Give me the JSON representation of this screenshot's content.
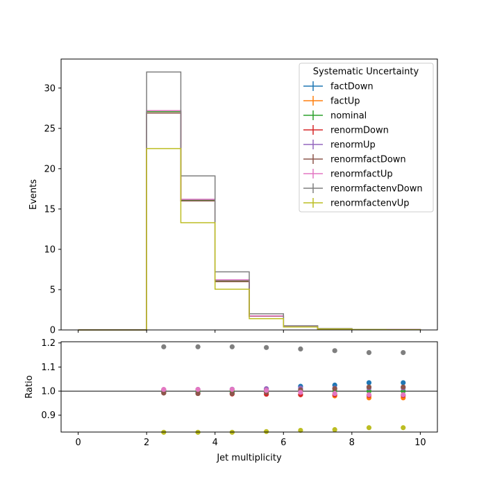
{
  "chart_data": [
    {
      "panel": "main",
      "type": "line",
      "ylabel": "Events",
      "xlim": [
        -0.5,
        10.5
      ],
      "ylim": [
        0,
        33.6
      ],
      "yticks": [
        0,
        5,
        10,
        15,
        20,
        25,
        30
      ],
      "bin_edges": [
        0,
        1,
        2,
        3,
        4,
        5,
        6,
        7,
        8,
        9,
        10
      ],
      "legend": {
        "title": "Systematic Uncertainty",
        "placement": "top-right"
      },
      "series": [
        {
          "name": "factDown",
          "color": "#1f77b4",
          "values": [
            0,
            0,
            27.1,
            16.1,
            6.1,
            1.7,
            0.45,
            0.15,
            0.05,
            0.03
          ]
        },
        {
          "name": "factUp",
          "color": "#ff7f0e",
          "values": [
            0,
            0,
            27.1,
            16.1,
            6.1,
            1.7,
            0.44,
            0.14,
            0.05,
            0.03
          ]
        },
        {
          "name": "nominal",
          "color": "#2ca02c",
          "values": [
            0,
            0,
            27.1,
            16.1,
            6.1,
            1.7,
            0.44,
            0.14,
            0.05,
            0.03
          ]
        },
        {
          "name": "renormDown",
          "color": "#d62728",
          "values": [
            0,
            0,
            26.9,
            16.0,
            6.0,
            1.7,
            0.44,
            0.14,
            0.05,
            0.03
          ]
        },
        {
          "name": "renormUp",
          "color": "#9467bd",
          "values": [
            0,
            0,
            27.2,
            16.2,
            6.2,
            1.75,
            0.45,
            0.14,
            0.05,
            0.03
          ]
        },
        {
          "name": "renormfactDown",
          "color": "#8c564b",
          "values": [
            0,
            0,
            26.9,
            16.0,
            6.0,
            1.7,
            0.44,
            0.14,
            0.05,
            0.03
          ]
        },
        {
          "name": "renormfactUp",
          "color": "#e377c2",
          "values": [
            0,
            0,
            27.2,
            16.2,
            6.2,
            1.75,
            0.44,
            0.14,
            0.05,
            0.03
          ]
        },
        {
          "name": "renormfactenvDown",
          "color": "#7f7f7f",
          "values": [
            0,
            0,
            32.0,
            19.1,
            7.2,
            2.0,
            0.52,
            0.17,
            0.06,
            0.035
          ]
        },
        {
          "name": "renormfactenvUp",
          "color": "#bcbd22",
          "values": [
            0,
            0,
            22.5,
            13.3,
            5.05,
            1.4,
            0.37,
            0.12,
            0.042,
            0.025
          ]
        }
      ]
    },
    {
      "panel": "ratio",
      "type": "scatter",
      "xlabel": "Jet multiplicity",
      "ylabel": "Ratio",
      "xlim": [
        -0.5,
        10.5
      ],
      "ylim": [
        0.83,
        1.205
      ],
      "yticks": [
        0.9,
        1.0,
        1.1,
        1.2
      ],
      "ytick_labels": [
        "0.9",
        "1.0",
        "1.1",
        "1.2"
      ],
      "xticks": [
        0,
        2,
        4,
        6,
        8,
        10
      ],
      "xtick_labels": [
        "0",
        "2",
        "4",
        "6",
        "8",
        "10"
      ],
      "reference_line": 1.0,
      "x": [
        2.5,
        3.5,
        4.5,
        5.5,
        6.5,
        7.5,
        8.5,
        9.5
      ],
      "series": [
        {
          "name": "factDown",
          "color": "#1f77b4",
          "values": [
            0.995,
            0.995,
            0.995,
            1.005,
            1.02,
            1.025,
            1.035,
            1.035
          ]
        },
        {
          "name": "factUp",
          "color": "#ff7f0e",
          "values": [
            1.005,
            1.003,
            1.003,
            0.995,
            0.985,
            0.98,
            0.972,
            0.972
          ]
        },
        {
          "name": "nominal",
          "color": "#2ca02c",
          "values": [
            1.0,
            1.0,
            1.0,
            1.0,
            1.0,
            1.0,
            1.0,
            1.0
          ]
        },
        {
          "name": "renormDown",
          "color": "#d62728",
          "values": [
            0.993,
            0.99,
            0.988,
            0.987,
            0.985,
            0.985,
            0.982,
            0.982
          ]
        },
        {
          "name": "renormUp",
          "color": "#9467bd",
          "values": [
            1.005,
            1.007,
            1.008,
            1.01,
            1.012,
            1.012,
            1.013,
            1.013
          ]
        },
        {
          "name": "renormfactDown",
          "color": "#8c564b",
          "values": [
            0.992,
            0.99,
            0.99,
            0.995,
            1.005,
            1.01,
            1.017,
            1.017
          ]
        },
        {
          "name": "renormfactUp",
          "color": "#e377c2",
          "values": [
            1.007,
            1.007,
            1.007,
            1.003,
            0.995,
            0.99,
            0.985,
            0.985
          ]
        },
        {
          "name": "renormfactenvDown",
          "color": "#7f7f7f",
          "values": [
            1.184,
            1.184,
            1.184,
            1.181,
            1.175,
            1.168,
            1.16,
            1.16
          ]
        },
        {
          "name": "renormfactenvUp",
          "color": "#bcbd22",
          "values": [
            0.829,
            0.829,
            0.829,
            0.832,
            0.837,
            0.84,
            0.848,
            0.848
          ]
        }
      ]
    }
  ]
}
